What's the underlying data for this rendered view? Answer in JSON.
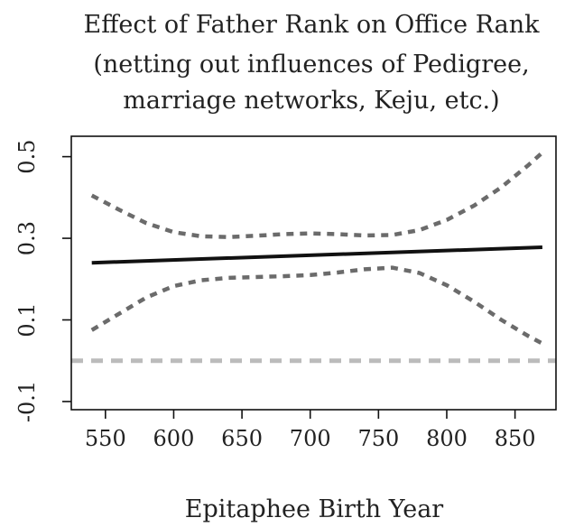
{
  "chart_data": {
    "type": "line",
    "title_lines": [
      "Effect of Father Rank on Office Rank",
      "(netting out influences of Pedigree,",
      "marriage networks, Keju, etc.)"
    ],
    "xlabel": "Epitaphee Birth Year",
    "ylabel": "",
    "xlim": [
      525,
      880
    ],
    "ylim": [
      -0.12,
      0.55
    ],
    "x_ticks": [
      550,
      600,
      650,
      700,
      750,
      800,
      850
    ],
    "y_ticks": [
      -0.1,
      0.1,
      0.3,
      0.5
    ],
    "y_tick_labels": [
      "-0.1",
      "0.1",
      "0.3",
      "0.5"
    ],
    "grid": false,
    "legend": "none",
    "series": [
      {
        "role": "estimate",
        "style": "solid",
        "color": "#111111",
        "x": [
          540,
          870
        ],
        "y": [
          0.24,
          0.278
        ]
      },
      {
        "role": "upper",
        "style": "dotted",
        "color": "#6b6b6b",
        "x": [
          540,
          560,
          580,
          600,
          620,
          640,
          660,
          680,
          700,
          720,
          740,
          760,
          780,
          800,
          820,
          840,
          860,
          870
        ],
        "y": [
          0.405,
          0.37,
          0.337,
          0.315,
          0.305,
          0.303,
          0.306,
          0.31,
          0.312,
          0.31,
          0.307,
          0.308,
          0.32,
          0.345,
          0.38,
          0.425,
          0.48,
          0.51
        ]
      },
      {
        "role": "lower",
        "style": "dotted",
        "color": "#6b6b6b",
        "x": [
          540,
          560,
          580,
          600,
          620,
          640,
          660,
          680,
          700,
          720,
          740,
          760,
          780,
          800,
          820,
          840,
          860,
          870
        ],
        "y": [
          0.075,
          0.115,
          0.155,
          0.183,
          0.197,
          0.203,
          0.205,
          0.207,
          0.21,
          0.216,
          0.224,
          0.228,
          0.215,
          0.185,
          0.145,
          0.1,
          0.06,
          0.042
        ]
      },
      {
        "role": "zero-reference",
        "style": "dashed",
        "color": "#bbbbbb",
        "x": [
          525,
          880
        ],
        "y": [
          0,
          0
        ]
      }
    ]
  }
}
